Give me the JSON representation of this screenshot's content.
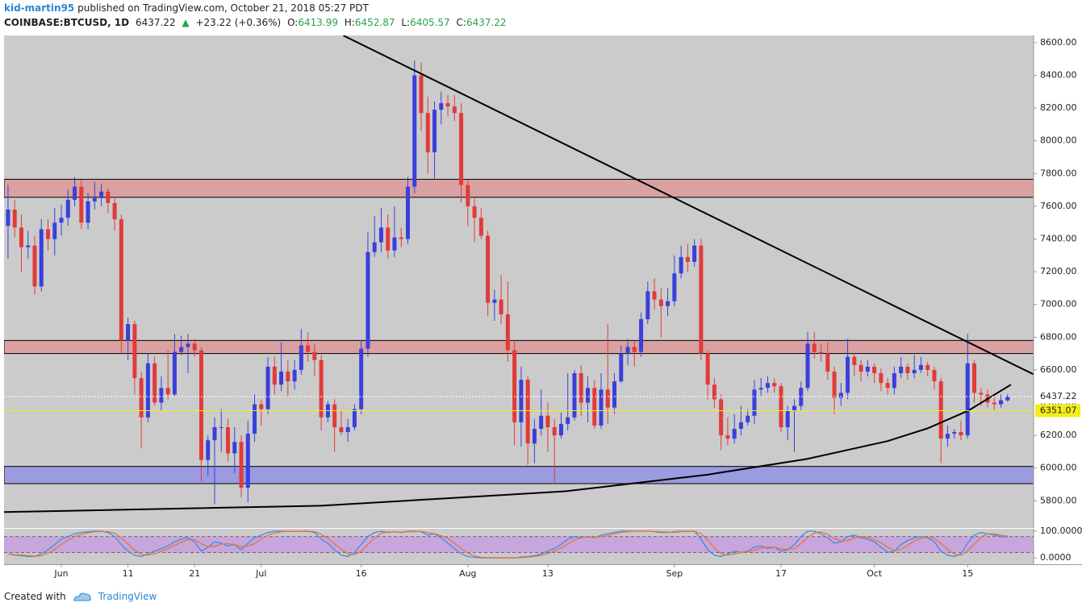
{
  "header": {
    "author": "kid-martin95",
    "published": "published on TradingView.com, October 21, 2018 05:27 PDT",
    "symbol": "COINBASE:BTCUSD, 1D",
    "arrow": "▲",
    "change": "+23.22 (+0.36%)",
    "o": "O:",
    "h": "H:",
    "l": "L:",
    "c": "C:"
  },
  "footer": {
    "created": "Created with",
    "brand": "TradingView"
  },
  "chart_data": [
    {
      "type": "candlestick",
      "up_color": "#3a3fdc",
      "down_color": "#e23a3a",
      "open": [
        7480,
        7580,
        7470,
        7350,
        7360,
        7110,
        7460,
        7400,
        7500,
        7530,
        7640,
        7720,
        7500,
        7630,
        7650,
        7690,
        7620,
        7520,
        6780,
        6880,
        6550,
        6310,
        6640,
        6400,
        6490,
        6450,
        6710,
        6740,
        6760,
        6720,
        6050,
        6170,
        6250,
        6250,
        6090,
        6160,
        5880,
        6210,
        6390,
        6360,
        6620,
        6510,
        6590,
        6530,
        6600,
        6750,
        6710,
        6660,
        6310,
        6390,
        6250,
        6220,
        6250,
        6360,
        6730,
        7320,
        7380,
        7470,
        7330,
        7410,
        7400,
        7720,
        8400,
        8170,
        7930,
        8190,
        8230,
        8210,
        8170,
        7730,
        7600,
        7530,
        7420,
        7010,
        7030,
        6940,
        6720,
        6280,
        6540,
        6150,
        6240,
        6320,
        6250,
        6200,
        6270,
        6310,
        6580,
        6400,
        6490,
        6260,
        6480,
        6370,
        6530,
        6700,
        6740,
        6710,
        6910,
        7080,
        7030,
        6990,
        7020,
        7190,
        7290,
        7260,
        7360,
        6700,
        6510,
        6420,
        6200,
        6180,
        6240,
        6280,
        6320,
        6480,
        6490,
        6520,
        6500,
        6250,
        6350,
        6380,
        6490,
        6760,
        6710,
        6700,
        6590,
        6430,
        6460,
        6680,
        6630,
        6590,
        6620,
        6580,
        6520,
        6490,
        6580,
        6620,
        6580,
        6600,
        6630,
        6600,
        6530,
        6180,
        6210,
        6220,
        6200,
        6640,
        6460,
        6450,
        6400,
        6390,
        6413.99
      ],
      "high": [
        7730,
        7640,
        7550,
        7450,
        7420,
        7520,
        7520,
        7590,
        7610,
        7700,
        7780,
        7760,
        7680,
        7750,
        7740,
        7710,
        7660,
        7550,
        6920,
        6900,
        6590,
        6700,
        6680,
        6560,
        6720,
        6820,
        6810,
        6820,
        6790,
        6740,
        6200,
        6310,
        6360,
        6300,
        6250,
        6200,
        6290,
        6450,
        6420,
        6680,
        6680,
        6770,
        6660,
        6660,
        6850,
        6830,
        6760,
        6690,
        6410,
        6420,
        6350,
        6300,
        6390,
        6780,
        7440,
        7540,
        7590,
        7550,
        7600,
        7470,
        7780,
        8490,
        8480,
        8270,
        8240,
        8300,
        8280,
        8280,
        8230,
        7760,
        7650,
        7590,
        7450,
        7090,
        7180,
        7140,
        6780,
        6620,
        6560,
        6300,
        6480,
        6400,
        6300,
        6340,
        6580,
        6600,
        6630,
        6560,
        6540,
        6580,
        6880,
        6580,
        6750,
        6790,
        6780,
        6950,
        7140,
        7160,
        7100,
        7100,
        7300,
        7360,
        7370,
        7400,
        7400,
        6720,
        6550,
        6450,
        6310,
        6330,
        6380,
        6360,
        6540,
        6550,
        6560,
        6550,
        6520,
        6380,
        6420,
        6530,
        6830,
        6830,
        6760,
        6770,
        6620,
        6520,
        6790,
        6700,
        6660,
        6660,
        6640,
        6610,
        6550,
        6620,
        6680,
        6640,
        6690,
        6680,
        6650,
        6620,
        6550,
        6260,
        6240,
        6290,
        6820,
        6660,
        6490,
        6480,
        6430,
        6450,
        6452.87
      ],
      "low": [
        7280,
        7410,
        7200,
        7280,
        7060,
        7080,
        7330,
        7300,
        7420,
        7480,
        7600,
        7460,
        7460,
        7580,
        7600,
        7560,
        7450,
        6700,
        6660,
        6450,
        6120,
        6280,
        6380,
        6350,
        6420,
        6440,
        6690,
        6580,
        6680,
        5920,
        5950,
        5780,
        6100,
        6040,
        5970,
        5820,
        5790,
        6160,
        6260,
        6330,
        6450,
        6470,
        6440,
        6480,
        6570,
        6650,
        6560,
        6230,
        6280,
        6100,
        6200,
        6160,
        6230,
        6330,
        6680,
        7290,
        7320,
        7280,
        7290,
        7350,
        7370,
        7680,
        8060,
        7800,
        7770,
        8100,
        8150,
        8120,
        7620,
        7480,
        7380,
        7400,
        6930,
        6900,
        6880,
        6650,
        6140,
        6130,
        6020,
        6030,
        6200,
        6100,
        5900,
        6180,
        6230,
        6290,
        6320,
        6280,
        6240,
        6240,
        6270,
        6330,
        6520,
        6630,
        6620,
        6680,
        6880,
        6970,
        6800,
        6930,
        6990,
        7160,
        7200,
        7230,
        6660,
        6420,
        6370,
        6110,
        6140,
        6150,
        6200,
        6260,
        6270,
        6440,
        6460,
        6460,
        6220,
        6170,
        6100,
        6350,
        6470,
        6670,
        6650,
        6540,
        6330,
        6380,
        6420,
        6560,
        6530,
        6560,
        6520,
        6470,
        6450,
        6450,
        6550,
        6540,
        6550,
        6580,
        6560,
        6480,
        6030,
        6130,
        6180,
        6170,
        6180,
        6400,
        6380,
        6370,
        6350,
        6370,
        6405.57
      ],
      "close": [
        7580,
        7470,
        7350,
        7360,
        7110,
        7460,
        7400,
        7500,
        7530,
        7640,
        7720,
        7500,
        7630,
        7650,
        7690,
        7620,
        7520,
        6780,
        6880,
        6550,
        6310,
        6640,
        6400,
        6490,
        6450,
        6710,
        6740,
        6760,
        6720,
        6050,
        6170,
        6250,
        6250,
        6090,
        6160,
        5880,
        6210,
        6390,
        6360,
        6620,
        6510,
        6590,
        6530,
        6600,
        6750,
        6710,
        6660,
        6310,
        6390,
        6250,
        6220,
        6250,
        6360,
        6730,
        7320,
        7380,
        7470,
        7330,
        7410,
        7400,
        7720,
        8400,
        8170,
        7930,
        8190,
        8230,
        8210,
        8170,
        7730,
        7600,
        7530,
        7420,
        7010,
        7030,
        6940,
        6720,
        6280,
        6540,
        6150,
        6240,
        6320,
        6250,
        6200,
        6270,
        6310,
        6580,
        6400,
        6490,
        6260,
        6480,
        6370,
        6530,
        6700,
        6740,
        6710,
        6910,
        7080,
        7030,
        6990,
        7020,
        7190,
        7290,
        7260,
        7360,
        6700,
        6510,
        6420,
        6200,
        6180,
        6240,
        6280,
        6320,
        6480,
        6490,
        6520,
        6500,
        6250,
        6350,
        6380,
        6490,
        6760,
        6710,
        6700,
        6590,
        6430,
        6460,
        6680,
        6630,
        6590,
        6620,
        6580,
        6520,
        6490,
        6580,
        6620,
        6580,
        6600,
        6630,
        6600,
        6530,
        6180,
        6210,
        6220,
        6200,
        6640,
        6460,
        6450,
        6400,
        6390,
        6413.99,
        6437.22
      ],
      "xlim": [
        -0.6,
        153.9
      ],
      "xticks": [
        {
          "value": 8,
          "label": "Jun"
        },
        {
          "value": 18,
          "label": "11"
        },
        {
          "value": 28,
          "label": "21"
        },
        {
          "value": 38,
          "label": "Jul"
        },
        {
          "value": 53,
          "label": "16"
        },
        {
          "value": 69,
          "label": "Aug"
        },
        {
          "value": 81,
          "label": "13"
        },
        {
          "value": 100,
          "label": "Sep"
        },
        {
          "value": 116,
          "label": "17"
        },
        {
          "value": 130,
          "label": "Oct"
        },
        {
          "value": 144,
          "label": "15"
        }
      ],
      "ylim": [
        5634,
        8644
      ],
      "yticks": [
        {
          "value": 5800,
          "label": "5800.00"
        },
        {
          "value": 6000,
          "label": "6000.00"
        },
        {
          "value": 6200,
          "label": "6200.00"
        },
        {
          "value": 6400,
          "label": "6400.00"
        },
        {
          "value": 6600,
          "label": "6600.00"
        },
        {
          "value": 6800,
          "label": "6800.00"
        },
        {
          "value": 7000,
          "label": "7000.00"
        },
        {
          "value": 7200,
          "label": "7200.00"
        },
        {
          "value": 7400,
          "label": "7400.00"
        },
        {
          "value": 7600,
          "label": "7600.00"
        },
        {
          "value": 7800,
          "label": "7800.00"
        },
        {
          "value": 8000,
          "label": "8000.00"
        },
        {
          "value": 8200,
          "label": "8200.00"
        },
        {
          "value": 8400,
          "label": "8400.00"
        },
        {
          "value": 8600,
          "label": "8600.00"
        }
      ],
      "hline": 6351.07,
      "hline_color": "#f2ee1a",
      "zones": [
        {
          "range": [
            7655,
            7765
          ],
          "color": "#d9a1a1"
        },
        {
          "range": [
            6700,
            6780
          ],
          "color": "#d9a1a1"
        },
        {
          "range": [
            5905,
            6010
          ],
          "color": "#9b9be0"
        }
      ],
      "trendlines": [
        {
          "color": "#000000",
          "points": [
            [
              50.3,
              8644
            ],
            [
              153.9,
              6573
            ]
          ]
        },
        {
          "color": "#000000",
          "points": [
            [
              -0.6,
              5731
            ],
            [
              47,
              5770
            ],
            [
              83.6,
              5858
            ],
            [
              105,
              5960
            ],
            [
              119.9,
              6056
            ],
            [
              132,
              6165
            ],
            [
              138,
              6243
            ],
            [
              144.1,
              6351
            ],
            [
              150.5,
              6510
            ]
          ]
        }
      ],
      "background": "#cbcbcb"
    },
    {
      "type": "line",
      "ylim": [
        -24,
        109
      ],
      "yticks": [
        {
          "value": 100,
          "label": "100.0000"
        },
        {
          "value": 0,
          "label": "0.0000"
        }
      ],
      "levels": [
        20,
        80
      ],
      "band_color": "#c7a6dc",
      "series": [
        {
          "color": "#3a8ee6",
          "values": [
            15,
            10,
            8,
            5,
            5,
            15,
            30,
            50,
            70,
            80,
            90,
            95,
            98,
            100,
            100,
            95,
            80,
            50,
            25,
            10,
            5,
            15,
            25,
            35,
            45,
            60,
            70,
            75,
            60,
            25,
            40,
            60,
            55,
            45,
            50,
            30,
            55,
            75,
            85,
            95,
            100,
            100,
            100,
            98,
            100,
            100,
            95,
            70,
            55,
            30,
            10,
            5,
            20,
            50,
            80,
            95,
            100,
            95,
            98,
            95,
            100,
            100,
            98,
            85,
            90,
            75,
            55,
            35,
            15,
            5,
            2,
            0,
            0,
            0,
            0,
            0,
            0,
            3,
            5,
            8,
            15,
            25,
            35,
            50,
            70,
            80,
            75,
            80,
            75,
            85,
            90,
            95,
            100,
            100,
            100,
            100,
            100,
            98,
            95,
            95,
            98,
            100,
            100,
            100,
            70,
            30,
            10,
            5,
            15,
            25,
            20,
            25,
            40,
            45,
            35,
            40,
            25,
            30,
            50,
            80,
            100,
            100,
            90,
            75,
            55,
            60,
            80,
            85,
            75,
            70,
            60,
            40,
            20,
            25,
            50,
            65,
            75,
            80,
            75,
            60,
            25,
            10,
            5,
            15,
            55,
            85,
            95,
            90,
            85,
            80,
            78
          ]
        },
        {
          "color": "#e8743a",
          "values": [
            15,
            12,
            11,
            8,
            6,
            8,
            17,
            32,
            50,
            67,
            80,
            88,
            94,
            98,
            99,
            98,
            92,
            75,
            52,
            28,
            13,
            10,
            15,
            25,
            35,
            47,
            58,
            68,
            68,
            53,
            42,
            42,
            52,
            53,
            50,
            42,
            45,
            53,
            72,
            85,
            93,
            98,
            100,
            99,
            99,
            99,
            98,
            88,
            73,
            52,
            32,
            15,
            12,
            25,
            50,
            75,
            92,
            97,
            98,
            96,
            98,
            98,
            99,
            94,
            91,
            83,
            73,
            55,
            35,
            18,
            7,
            2,
            1,
            0,
            0,
            0,
            0,
            1,
            3,
            5,
            9,
            16,
            25,
            37,
            52,
            67,
            75,
            78,
            77,
            80,
            83,
            90,
            95,
            98,
            100,
            100,
            100,
            99,
            98,
            96,
            96,
            98,
            99,
            100,
            90,
            67,
            37,
            15,
            10,
            15,
            20,
            23,
            28,
            37,
            40,
            40,
            33,
            32,
            35,
            53,
            77,
            93,
            97,
            88,
            73,
            63,
            65,
            75,
            80,
            77,
            68,
            57,
            40,
            28,
            32,
            47,
            63,
            73,
            77,
            72,
            53,
            32,
            13,
            10,
            25,
            52,
            78,
            90,
            90,
            85,
            81
          ]
        }
      ],
      "background": "#cbcbcb"
    }
  ]
}
